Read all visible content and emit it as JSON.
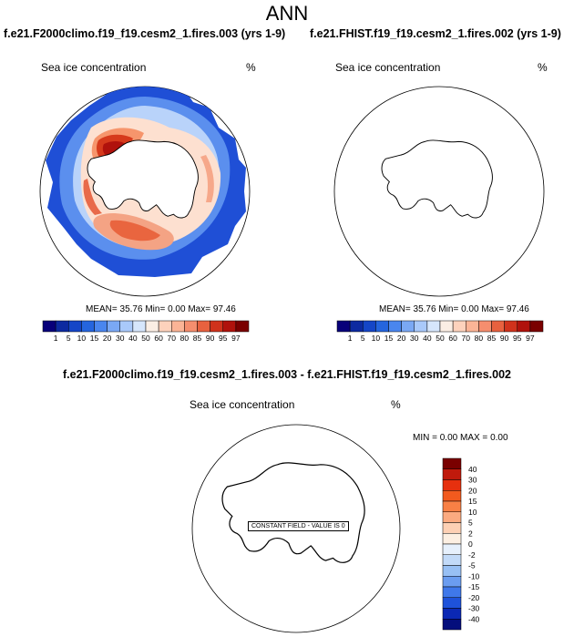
{
  "figure": {
    "title": "ANN"
  },
  "chart_data": [
    {
      "type": "heatmap",
      "projection": "polar-stereographic-south",
      "title": "f.e21.F2000climo.f19_f19.cesm2_1.fires.003 (yrs 1-9)",
      "variable": "Sea ice concentration",
      "units": "%",
      "stats": {
        "mean_label": "MEAN=",
        "mean": "35.76",
        "min_label": "Min=",
        "min": "0.00",
        "max_label": "Max=",
        "max": "97.46"
      },
      "colorbar": {
        "orientation": "horizontal",
        "levels": [
          "1",
          "5",
          "10",
          "15",
          "20",
          "30",
          "40",
          "50",
          "60",
          "70",
          "80",
          "85",
          "90",
          "95",
          "97"
        ],
        "colors": [
          "#08007a",
          "#0d2aa0",
          "#1546c7",
          "#2565de",
          "#4a86ee",
          "#7aa8f4",
          "#a9c9fa",
          "#d6e6fc",
          "#fbeee4",
          "#fdd2bc",
          "#fbb496",
          "#f58e6e",
          "#e8613f",
          "#d0321c",
          "#b0120c",
          "#7a0000"
        ]
      }
    },
    {
      "type": "heatmap",
      "projection": "polar-stereographic-south",
      "title": "f.e21.FHIST.f19_f19.cesm2_1.fires.002 (yrs 1-9)",
      "variable": "Sea ice concentration",
      "units": "%",
      "stats": {
        "mean_label": "MEAN=",
        "mean": "35.76",
        "min_label": "Min=",
        "min": "0.00",
        "max_label": "Max=",
        "max": "97.46"
      },
      "colorbar": {
        "orientation": "horizontal",
        "levels": [
          "1",
          "5",
          "10",
          "15",
          "20",
          "30",
          "40",
          "50",
          "60",
          "70",
          "80",
          "85",
          "90",
          "95",
          "97"
        ],
        "colors": [
          "#08007a",
          "#0d2aa0",
          "#1546c7",
          "#2565de",
          "#4a86ee",
          "#7aa8f4",
          "#a9c9fa",
          "#d6e6fc",
          "#fbeee4",
          "#fdd2bc",
          "#fbb496",
          "#f58e6e",
          "#e8613f",
          "#d0321c",
          "#b0120c",
          "#7a0000"
        ]
      }
    },
    {
      "type": "heatmap",
      "projection": "polar-stereographic-south",
      "title": "f.e21.F2000climo.f19_f19.cesm2_1.fires.003 - f.e21.FHIST.f19_f19.cesm2_1.fires.002",
      "variable": "Sea ice concentration",
      "units": "%",
      "stats": {
        "min_label": "MIN =",
        "min": "0.00",
        "max_label": "MAX =",
        "max": "0.00"
      },
      "note": "CONSTANT FIELD - VALUE IS 0",
      "colorbar": {
        "orientation": "vertical",
        "levels": [
          "40",
          "30",
          "20",
          "15",
          "10",
          "5",
          "2",
          "0",
          "-2",
          "-5",
          "-10",
          "-15",
          "-20",
          "-30",
          "-40"
        ],
        "colors": [
          "#7a0000",
          "#c01a0c",
          "#e6300e",
          "#f25a1e",
          "#f88045",
          "#fbaa80",
          "#fdd0b4",
          "#fcefe2",
          "#e6f0fc",
          "#c2daf8",
          "#98c0f4",
          "#6b9df0",
          "#3f78ea",
          "#1e52da",
          "#0b28b4",
          "#040e7c"
        ]
      }
    }
  ]
}
